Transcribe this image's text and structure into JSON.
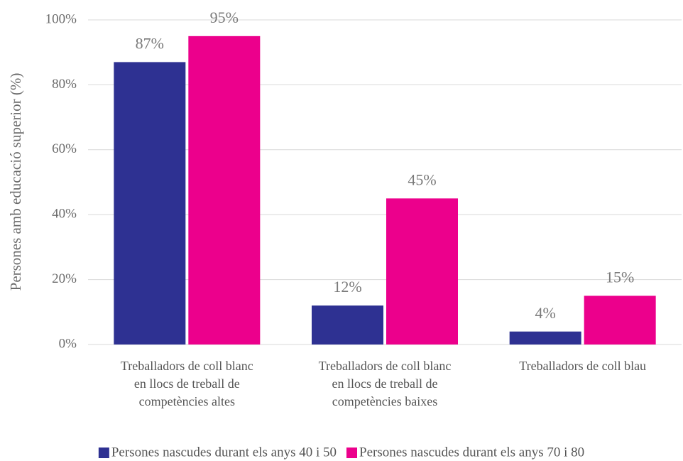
{
  "chart_data": {
    "type": "bar",
    "y_label": "Persones amb educació superior (%)",
    "categories": [
      "Treballadors de coll blanc en llocs de treball de competències altes",
      "Treballadors de coll blanc en llocs de treball de competències baixes",
      "Treballadors de coll blau"
    ],
    "series": [
      {
        "name": "Persones nascudes durant els anys 40 i 50",
        "color": "#2e3192",
        "values": [
          87,
          12,
          4
        ],
        "value_labels": [
          "87%",
          "12%",
          "4%"
        ]
      },
      {
        "name": "Persones nascudes durant els anys 70 i 80",
        "color": "#ec008c",
        "values": [
          95,
          45,
          15
        ],
        "value_labels": [
          "95%",
          "45%",
          "15%"
        ]
      }
    ],
    "ylim": [
      0,
      100
    ],
    "yticks": [
      {
        "value": 0,
        "label": "0%"
      },
      {
        "value": 20,
        "label": "20%"
      },
      {
        "value": 40,
        "label": "40%"
      },
      {
        "value": 60,
        "label": "60%"
      },
      {
        "value": 80,
        "label": "80%"
      },
      {
        "value": 100,
        "label": "100%"
      }
    ],
    "grid": true,
    "legend": "bottom"
  }
}
